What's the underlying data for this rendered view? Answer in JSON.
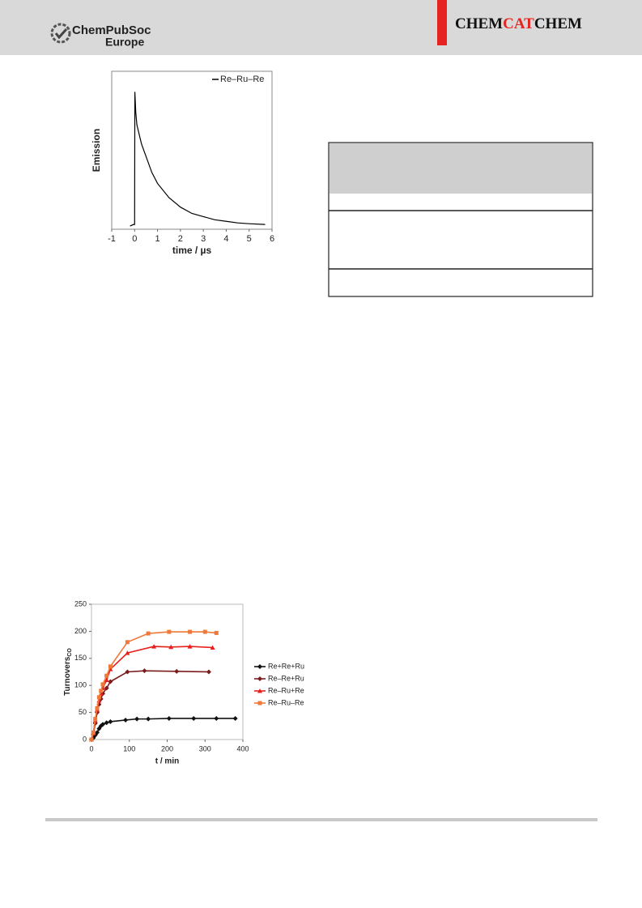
{
  "header": {
    "society": "ChemPubSoc",
    "region": "Europe",
    "journal_title": [
      "CHEM",
      "CAT",
      "CHEM"
    ]
  },
  "chart_data": [
    {
      "type": "line",
      "ylabel": "Emission",
      "xlabel": "time / µs",
      "xlim": [
        -1,
        6
      ],
      "xticks": [
        -1,
        0,
        1,
        2,
        3,
        4,
        5,
        6
      ],
      "ylim": [
        0,
        1
      ],
      "legend": "upper right",
      "frame": true,
      "x": [
        -0.2,
        -0.05,
        0,
        0.01,
        0.05,
        0.1,
        0.2,
        0.3,
        0.5,
        0.75,
        1,
        1.5,
        2,
        2.5,
        3,
        3.5,
        4,
        4.5,
        5,
        5.7
      ],
      "series": [
        {
          "name": "Re–Ru–Re",
          "color": "#000000",
          "marker": "none",
          "values": [
            0.02,
            0.03,
            0.03,
            0.87,
            0.74,
            0.66,
            0.6,
            0.54,
            0.46,
            0.36,
            0.29,
            0.2,
            0.14,
            0.1,
            0.08,
            0.06,
            0.05,
            0.04,
            0.035,
            0.03
          ]
        }
      ]
    },
    {
      "type": "line",
      "ylabel": "Turnovers",
      "ylabel_sub": "CO",
      "xlabel": "t / min",
      "xlim": [
        0,
        400
      ],
      "xticks": [
        0,
        100,
        200,
        300,
        400
      ],
      "ylim": [
        0,
        250
      ],
      "yticks": [
        0,
        50,
        100,
        150,
        200,
        250
      ],
      "legend": "right outside",
      "frame": true,
      "series": [
        {
          "name": "Re+Re+Ru",
          "color": "#111111",
          "marker": "diamond",
          "x": [
            0,
            5,
            10,
            15,
            20,
            25,
            30,
            40,
            50,
            90,
            120,
            150,
            205,
            270,
            330,
            380
          ],
          "values": [
            0,
            3,
            8,
            13,
            20,
            25,
            28,
            31,
            33,
            36,
            38,
            38,
            39,
            39,
            39,
            39
          ]
        },
        {
          "name": "Re–Re+Ru",
          "color": "#7a1c1c",
          "marker": "diamond",
          "x": [
            0,
            5,
            10,
            15,
            20,
            25,
            30,
            40,
            50,
            95,
            140,
            225,
            310
          ],
          "values": [
            0,
            10,
            30,
            50,
            65,
            75,
            85,
            95,
            107,
            125,
            127,
            126,
            125
          ]
        },
        {
          "name": "Re–Ru+Re",
          "color": "#e8201c",
          "marker": "triangle",
          "x": [
            0,
            5,
            10,
            15,
            20,
            25,
            30,
            40,
            50,
            95,
            165,
            210,
            260,
            320
          ],
          "values": [
            0,
            12,
            35,
            55,
            72,
            85,
            95,
            110,
            130,
            160,
            172,
            171,
            172,
            170
          ]
        },
        {
          "name": "Re–Ru–Re",
          "color": "#f07838",
          "marker": "square",
          "x": [
            0,
            5,
            10,
            15,
            20,
            25,
            30,
            40,
            50,
            95,
            150,
            205,
            260,
            300,
            330
          ],
          "values": [
            0,
            13,
            38,
            58,
            78,
            90,
            102,
            118,
            135,
            180,
            196,
            199,
            199,
            199,
            197
          ]
        }
      ]
    }
  ]
}
